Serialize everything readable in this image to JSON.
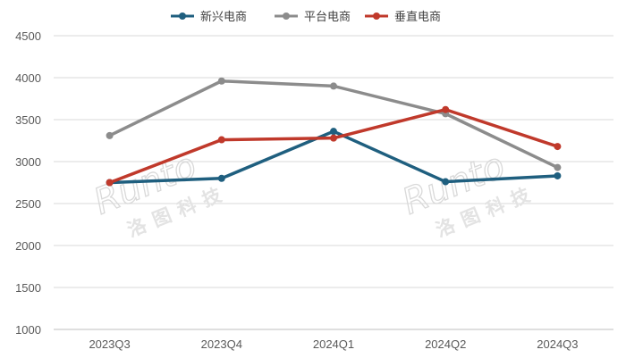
{
  "watermark": {
    "latin": "Runto",
    "cjk": "洛图科技"
  },
  "chart_data": {
    "type": "line",
    "categories": [
      "2023Q3",
      "2023Q4",
      "2024Q1",
      "2024Q2",
      "2024Q3"
    ],
    "ylim": [
      1000,
      4500
    ],
    "yticks": [
      1000,
      1500,
      2000,
      2500,
      3000,
      3500,
      4000,
      4500
    ],
    "legend_position": "top-center",
    "grid": "horizontal",
    "series": [
      {
        "name": "新兴电商",
        "color": "#1f5f7f",
        "values": [
          2750,
          2800,
          3360,
          2760,
          2830
        ]
      },
      {
        "name": "平台电商",
        "color": "#8c8c8c",
        "values": [
          3310,
          3960,
          3900,
          3570,
          2930
        ]
      },
      {
        "name": "垂直电商",
        "color": "#c0392b",
        "values": [
          2750,
          3260,
          3280,
          3620,
          3180
        ]
      }
    ]
  }
}
